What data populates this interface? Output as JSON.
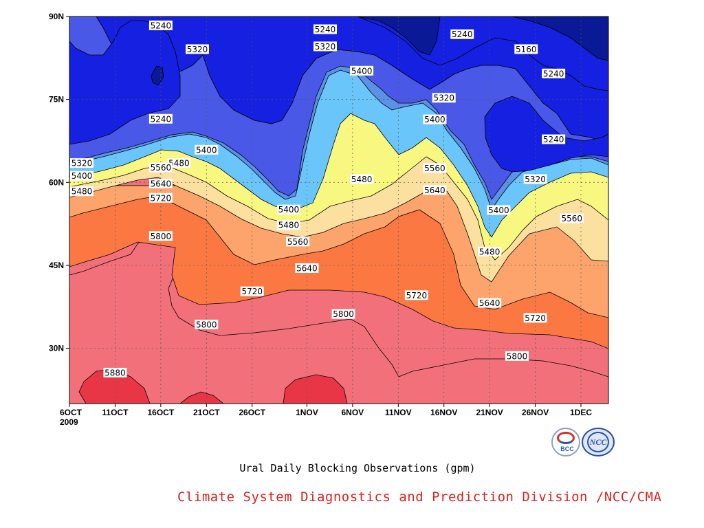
{
  "chart_data": {
    "type": "contour",
    "caption": "Ural Daily Blocking Observations (gpm)",
    "x_ticks": [
      "6OCT",
      "11OCT",
      "16OCT",
      "21OCT",
      "26OCT",
      "1NOV",
      "6NOV",
      "11NOV",
      "16NOV",
      "21NOV",
      "26NOV",
      "1DEC"
    ],
    "x_year_label": "2009",
    "y_ticks": [
      "30N",
      "45N",
      "60N",
      "75N",
      "90N"
    ],
    "y_values": [
      30,
      45,
      60,
      75,
      90
    ],
    "ylim": [
      20,
      90
    ],
    "grid": true,
    "levels": [
      5160,
      5240,
      5320,
      5400,
      5480,
      5560,
      5640,
      5720,
      5800,
      5880
    ],
    "band_colors": [
      "#0a1a96",
      "#1620e0",
      "#4a58e8",
      "#5a92e6",
      "#6ac6fa",
      "#f8f880",
      "#fce0a0",
      "#fca46c",
      "#fc7842",
      "#f2707a",
      "#e83646"
    ],
    "contour_labels": [
      {
        "text": "5240",
        "date": "16OCT",
        "lat": 88.4
      },
      {
        "text": "5240",
        "date": "3NOV",
        "lat": 87.7
      },
      {
        "text": "5240",
        "date": "18NOV",
        "lat": 86.8
      },
      {
        "text": "5320",
        "date": "20OCT",
        "lat": 84.1
      },
      {
        "text": "5320",
        "date": "3NOV",
        "lat": 84.6
      },
      {
        "text": "5160",
        "date": "25NOV",
        "lat": 84.1
      },
      {
        "text": "5240",
        "date": "28NOV",
        "lat": 79.7
      },
      {
        "text": "5400",
        "date": "7NOV",
        "lat": 80.2
      },
      {
        "text": "5320",
        "date": "16NOV",
        "lat": 75.3
      },
      {
        "text": "5240",
        "date": "16OCT",
        "lat": 71.5
      },
      {
        "text": "5400",
        "date": "15NOV",
        "lat": 71.4
      },
      {
        "text": "5240",
        "date": "28NOV",
        "lat": 67.8
      },
      {
        "text": "5400",
        "date": "21OCT",
        "lat": 65.9
      },
      {
        "text": "5320",
        "date": "7OCT",
        "lat": 63.5
      },
      {
        "text": "5480",
        "date": "18OCT",
        "lat": 63.5
      },
      {
        "text": "5560",
        "date": "16OCT",
        "lat": 62.7
      },
      {
        "text": "5560",
        "date": "15NOV",
        "lat": 62.6
      },
      {
        "text": "5400",
        "date": "7OCT",
        "lat": 61.2
      },
      {
        "text": "5480",
        "date": "7NOV",
        "lat": 60.6
      },
      {
        "text": "5320",
        "date": "26NOV",
        "lat": 60.6
      },
      {
        "text": "5640",
        "date": "16OCT",
        "lat": 59.8
      },
      {
        "text": "5640",
        "date": "15NOV",
        "lat": 58.6
      },
      {
        "text": "5480",
        "date": "6OCT",
        "lat": 58.4
      },
      {
        "text": "5720",
        "date": "16OCT",
        "lat": 57.2
      },
      {
        "text": "5400",
        "date": "30OCT",
        "lat": 55.1
      },
      {
        "text": "5400",
        "date": "22NOV",
        "lat": 55.0
      },
      {
        "text": "5560",
        "date": "30NOV",
        "lat": 53.5
      },
      {
        "text": "5480",
        "date": "30OCT",
        "lat": 52.3
      },
      {
        "text": "5800",
        "date": "16OCT",
        "lat": 50.3
      },
      {
        "text": "5560",
        "date": "31OCT",
        "lat": 49.3
      },
      {
        "text": "5480",
        "date": "21NOV",
        "lat": 47.5
      },
      {
        "text": "5640",
        "date": "1NOV",
        "lat": 44.5
      },
      {
        "text": "5720",
        "date": "26OCT",
        "lat": 40.3
      },
      {
        "text": "5720",
        "date": "13NOV",
        "lat": 39.6
      },
      {
        "text": "5640",
        "date": "21NOV",
        "lat": 38.2
      },
      {
        "text": "5800",
        "date": "5NOV",
        "lat": 36.2
      },
      {
        "text": "5720",
        "date": "26NOV",
        "lat": 35.5
      },
      {
        "text": "5800",
        "date": "21OCT",
        "lat": 34.3
      },
      {
        "text": "5800",
        "date": "24NOV",
        "lat": 28.6
      },
      {
        "text": "5880",
        "date": "11OCT",
        "lat": 25.6
      }
    ]
  },
  "footer": {
    "credit": "Climate System Diagnostics and Prediction Division /NCC/CMA",
    "logo_bcc_text": "BCC",
    "logo_ncc_text": "NCC"
  }
}
